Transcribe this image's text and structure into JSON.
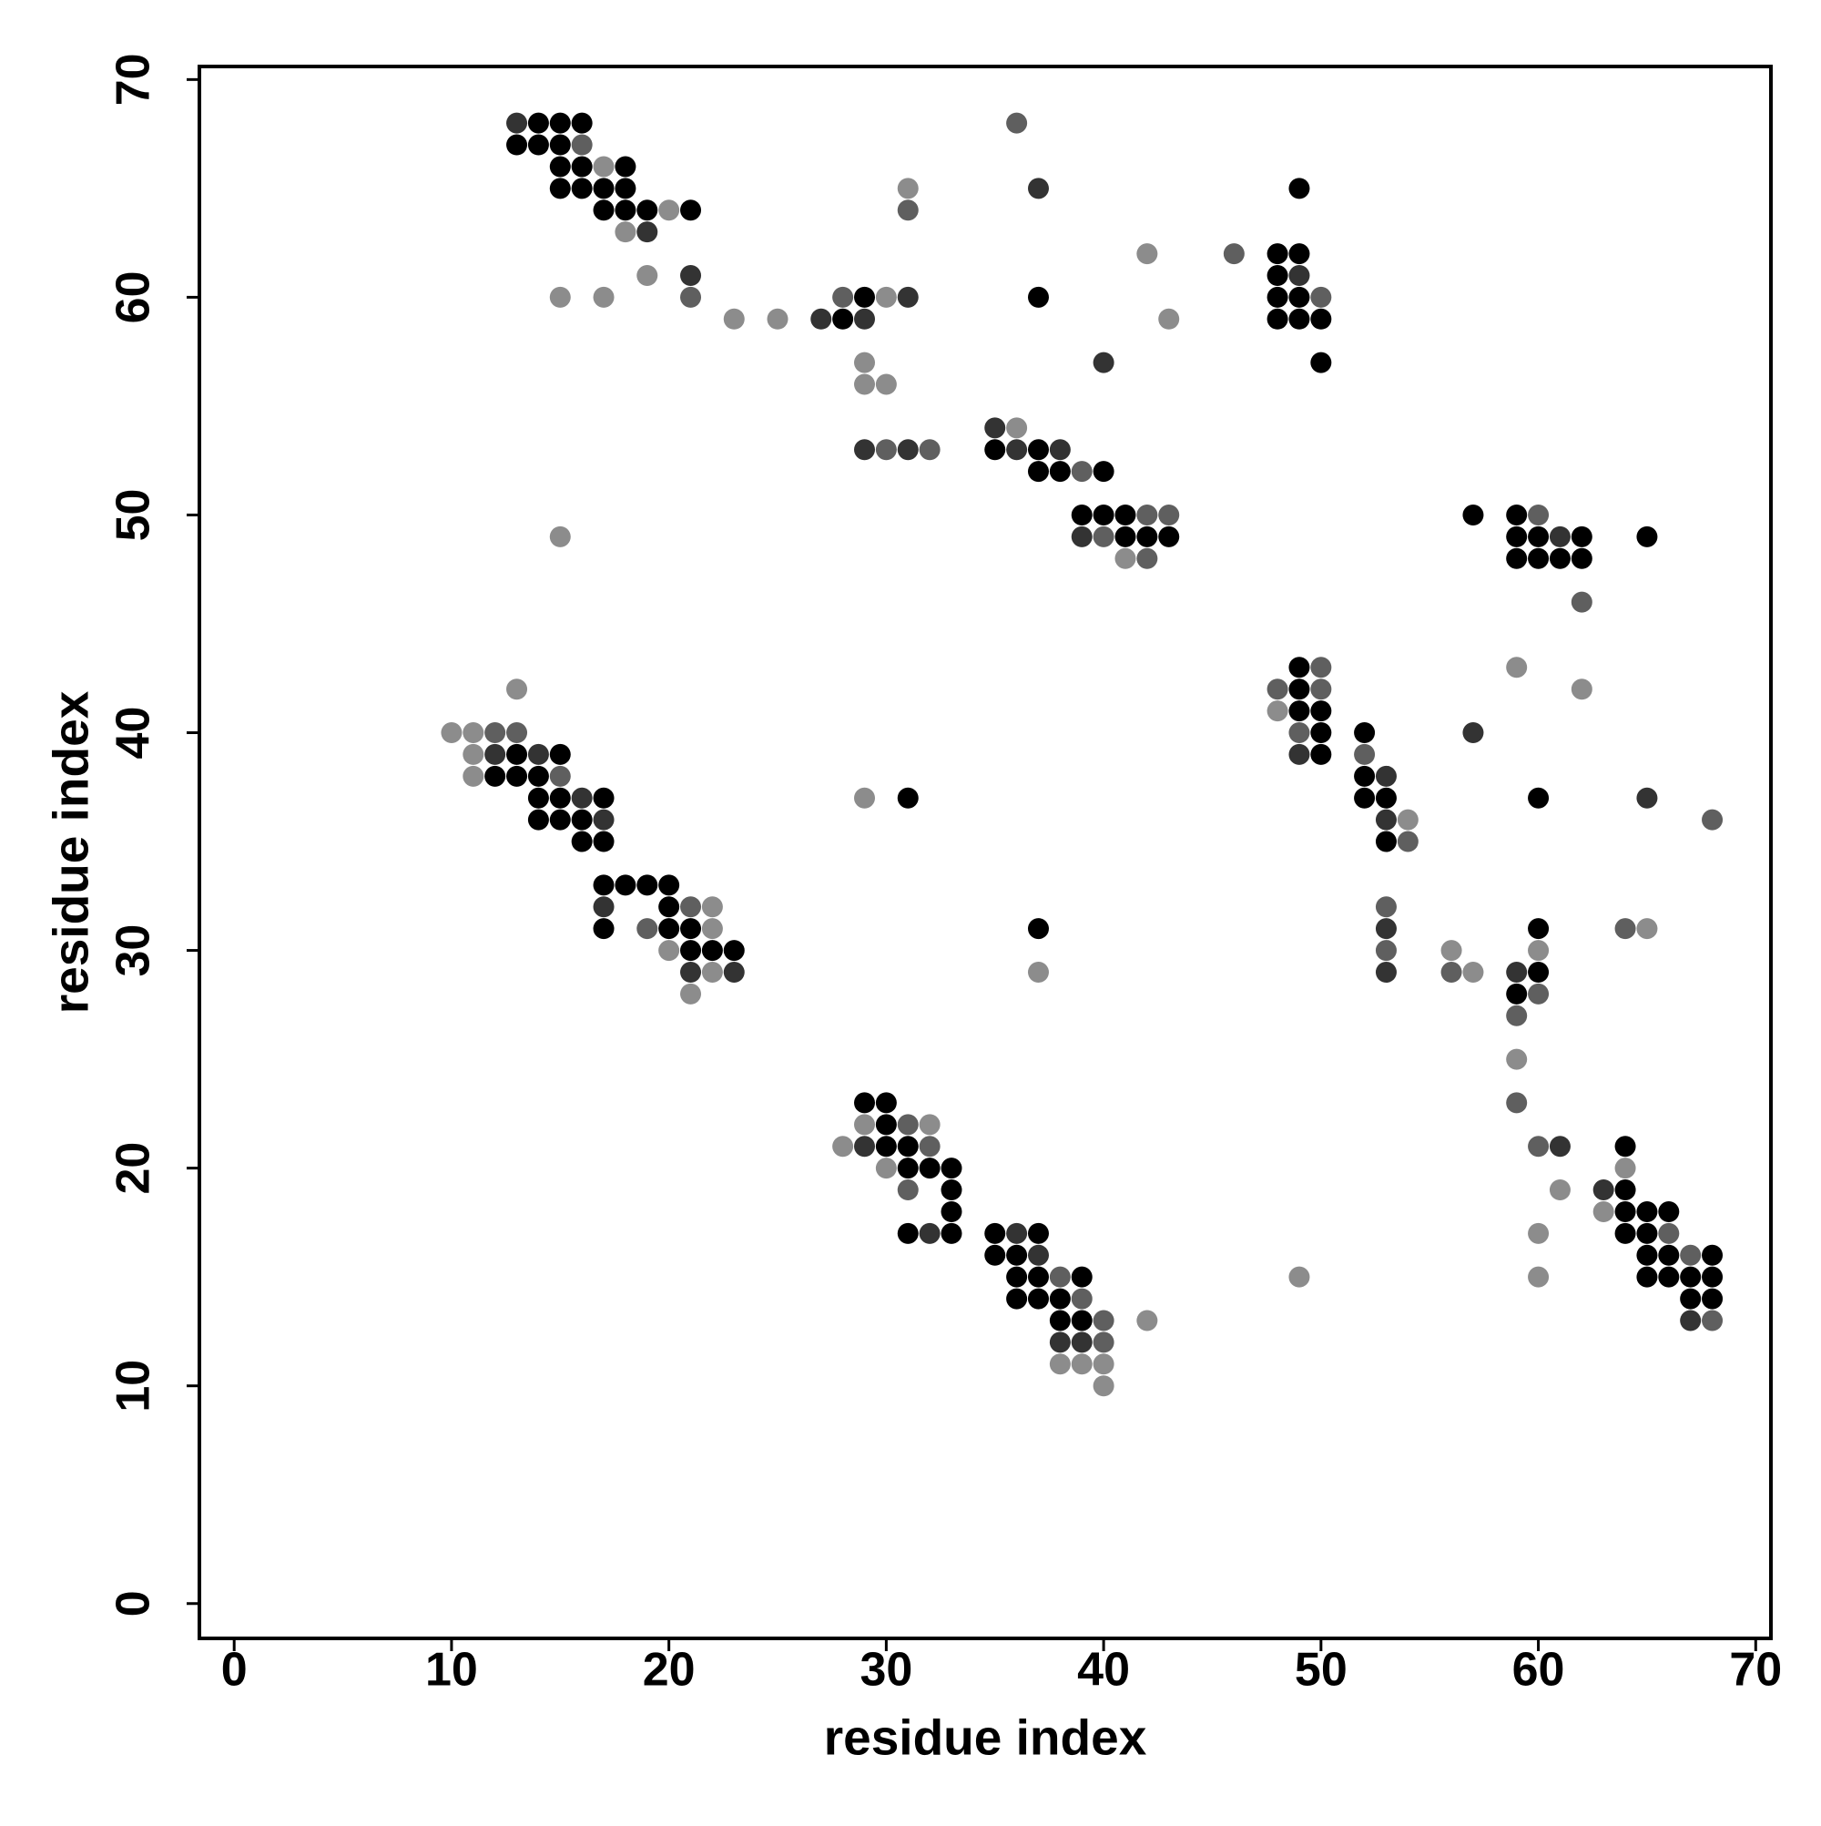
{
  "chart_data": {
    "type": "scatter",
    "x_label": "residue index",
    "y_label": "residue index",
    "xlim": [
      -1.6,
      70.7
    ],
    "ylim": [
      -1.6,
      70.6
    ],
    "xticks": [
      0,
      10,
      20,
      30,
      40,
      50,
      60,
      70
    ],
    "yticks": [
      0,
      10,
      20,
      30,
      40,
      50,
      60,
      70
    ],
    "grid": false,
    "series": [
      {
        "color": "#000000",
        "x": [
          14,
          15,
          16,
          13,
          14,
          15,
          15,
          16,
          18,
          15,
          16,
          17,
          18,
          49,
          17,
          18,
          19,
          21,
          48,
          49,
          48,
          29,
          37,
          48,
          49,
          28,
          48,
          49,
          50,
          50,
          35,
          37,
          37,
          38,
          40,
          39,
          40,
          41,
          57,
          59,
          41,
          42,
          43,
          59,
          60,
          62,
          65,
          59,
          60,
          61,
          62,
          49,
          49,
          49,
          50,
          50,
          52,
          13,
          15,
          50,
          12,
          13,
          14,
          52,
          14,
          15,
          17,
          31,
          52,
          53,
          60,
          14,
          15,
          16,
          16,
          17,
          53,
          17,
          18,
          19,
          20,
          20,
          17,
          20,
          21,
          37,
          60,
          21,
          22,
          23,
          60,
          59,
          29,
          30,
          30,
          30,
          31,
          64,
          31,
          32,
          33,
          33,
          64,
          33,
          64,
          65,
          66,
          31,
          33,
          35,
          37,
          64,
          65,
          35,
          36,
          65,
          66,
          68,
          36,
          37,
          39,
          65,
          66,
          67,
          68,
          36,
          37,
          38,
          67,
          68,
          38,
          39
        ],
        "y": [
          68,
          68,
          68,
          67,
          67,
          67,
          66,
          66,
          66,
          65,
          65,
          65,
          65,
          65,
          64,
          64,
          64,
          64,
          62,
          62,
          61,
          60,
          60,
          60,
          60,
          59,
          59,
          59,
          59,
          57,
          53,
          53,
          52,
          52,
          52,
          50,
          50,
          50,
          50,
          50,
          49,
          49,
          49,
          49,
          49,
          49,
          49,
          48,
          48,
          48,
          48,
          43,
          42,
          41,
          41,
          40,
          40,
          39,
          39,
          39,
          38,
          38,
          38,
          38,
          37,
          37,
          37,
          37,
          37,
          37,
          37,
          36,
          36,
          36,
          35,
          35,
          35,
          33,
          33,
          33,
          33,
          32,
          31,
          31,
          31,
          31,
          31,
          30,
          30,
          30,
          29,
          28,
          23,
          23,
          22,
          21,
          21,
          21,
          20,
          20,
          20,
          19,
          19,
          18,
          18,
          18,
          18,
          17,
          17,
          17,
          17,
          17,
          17,
          16,
          16,
          16,
          16,
          16,
          15,
          15,
          15,
          15,
          15,
          15,
          15,
          14,
          14,
          14,
          14,
          14,
          13,
          13
        ]
      },
      {
        "color": "#333333",
        "x": [
          13,
          37,
          19,
          21,
          49,
          31,
          27,
          29,
          40,
          35,
          29,
          31,
          36,
          38,
          39,
          61,
          57,
          12,
          14,
          49,
          53,
          16,
          65,
          17,
          53,
          17,
          53,
          21,
          23,
          53,
          59,
          29,
          61,
          63,
          32,
          36,
          37,
          67,
          38,
          39
        ],
        "y": [
          68,
          65,
          63,
          61,
          61,
          60,
          59,
          59,
          57,
          54,
          53,
          53,
          53,
          53,
          49,
          49,
          40,
          39,
          39,
          39,
          38,
          37,
          37,
          36,
          36,
          32,
          31,
          29,
          29,
          29,
          29,
          21,
          21,
          19,
          17,
          17,
          16,
          13,
          12,
          12
        ]
      },
      {
        "color": "#5f5f5f",
        "x": [
          36,
          16,
          31,
          46,
          21,
          28,
          50,
          30,
          32,
          39,
          42,
          43,
          60,
          40,
          42,
          62,
          50,
          48,
          50,
          12,
          13,
          49,
          52,
          15,
          68,
          54,
          21,
          53,
          19,
          64,
          53,
          56,
          60,
          59,
          59,
          31,
          32,
          60,
          31,
          66,
          67,
          38,
          39,
          40,
          68,
          40
        ],
        "y": [
          68,
          67,
          64,
          62,
          60,
          60,
          60,
          53,
          53,
          52,
          50,
          50,
          50,
          49,
          48,
          46,
          43,
          42,
          42,
          40,
          40,
          40,
          39,
          38,
          36,
          35,
          32,
          32,
          31,
          31,
          30,
          29,
          28,
          27,
          23,
          22,
          21,
          21,
          19,
          17,
          16,
          15,
          14,
          13,
          13,
          12
        ]
      },
      {
        "color": "#8c8c8c",
        "x": [
          17,
          31,
          20,
          18,
          42,
          19,
          15,
          17,
          30,
          23,
          25,
          43,
          29,
          29,
          30,
          36,
          15,
          41,
          59,
          13,
          62,
          48,
          10,
          11,
          11,
          11,
          29,
          54,
          22,
          22,
          65,
          20,
          56,
          60,
          22,
          37,
          57,
          21,
          59,
          29,
          32,
          28,
          30,
          64,
          61,
          63,
          60,
          49,
          60,
          42,
          38,
          39,
          40,
          40
        ],
        "y": [
          66,
          65,
          64,
          63,
          62,
          61,
          60,
          60,
          60,
          59,
          59,
          59,
          57,
          56,
          56,
          54,
          49,
          48,
          43,
          42,
          42,
          41,
          40,
          40,
          39,
          38,
          37,
          36,
          32,
          31,
          31,
          30,
          30,
          30,
          29,
          29,
          29,
          28,
          25,
          22,
          22,
          21,
          20,
          20,
          19,
          18,
          17,
          15,
          15,
          13,
          11,
          11,
          11,
          10
        ]
      }
    ]
  }
}
